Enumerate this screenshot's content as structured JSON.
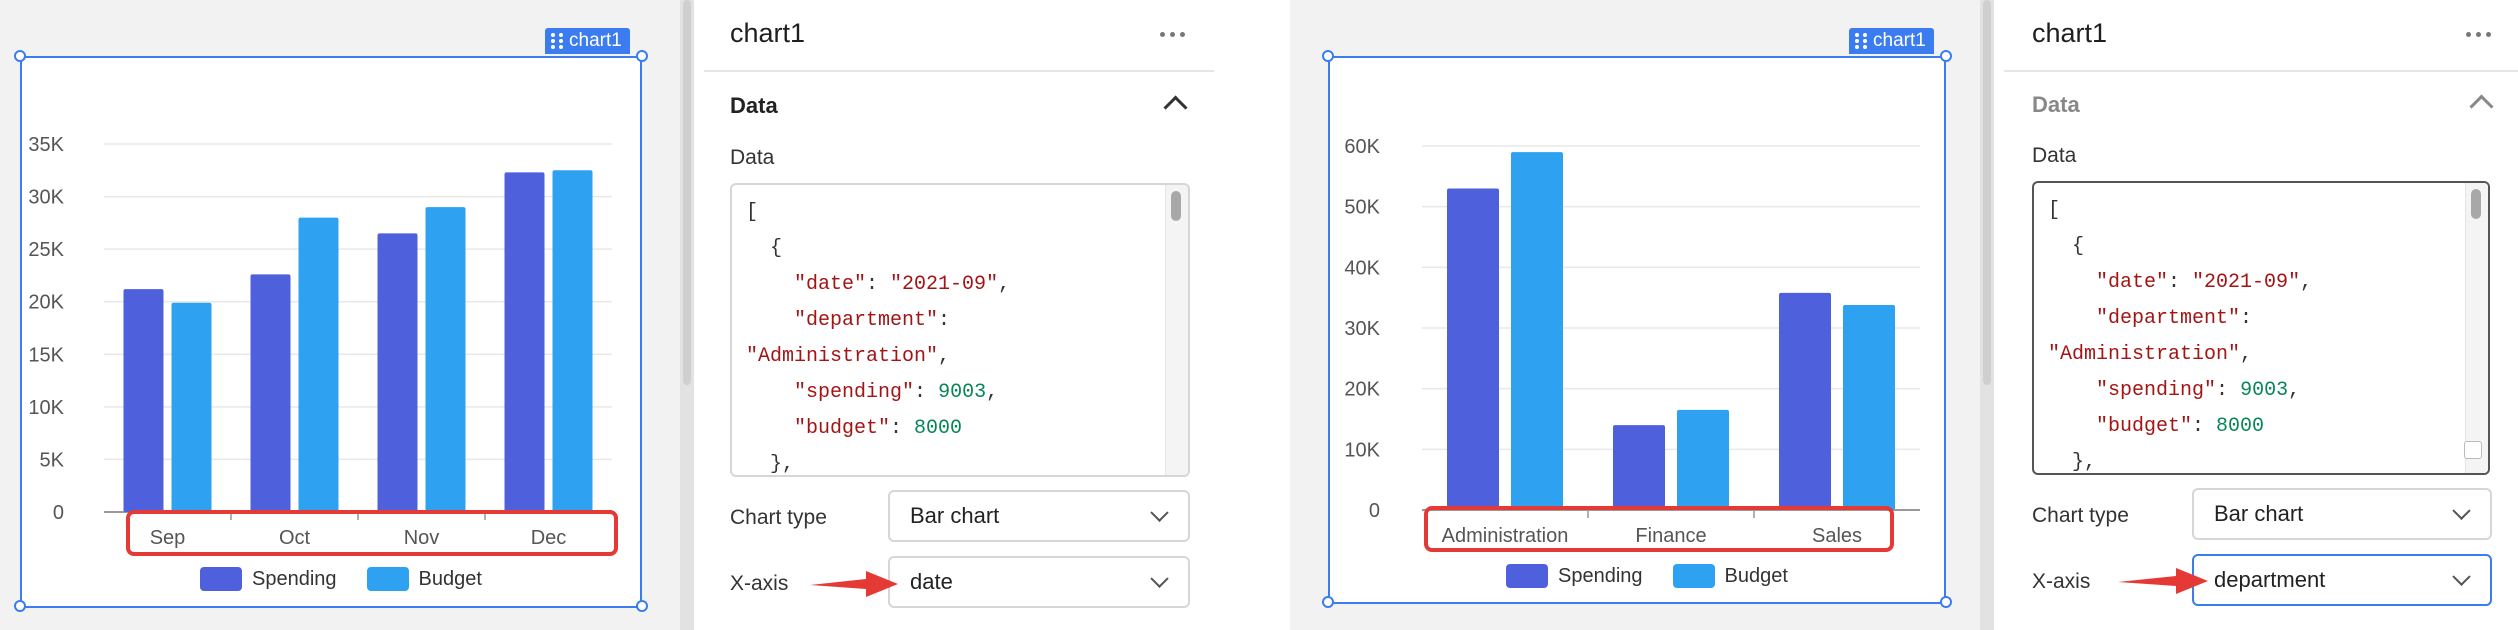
{
  "panels": [
    {
      "chart_tag": "chart1",
      "title": "chart1",
      "section": "Data",
      "data_label": "Data",
      "code": {
        "line1": "[",
        "line2": "  {",
        "date_key": "\"date\"",
        "date_val": "\"2021-09\"",
        "dept_key": "\"department\"",
        "dept_val": "\"Administration\"",
        "spend_key": "\"spending\"",
        "spend_val": "9003",
        "budget_key": "\"budget\"",
        "budget_val": "8000",
        "close": "  },"
      },
      "chart_type_label": "Chart type",
      "chart_type_value": "Bar chart",
      "x_axis_label": "X-axis",
      "x_axis_value": "date"
    },
    {
      "chart_tag": "chart1",
      "title": "chart1",
      "section": "Data",
      "data_label": "Data",
      "code": {
        "line1": "[",
        "line2": "  {",
        "date_key": "\"date\"",
        "date_val": "\"2021-09\"",
        "dept_key": "\"department\"",
        "dept_val": "\"Administration\"",
        "spend_key": "\"spending\"",
        "spend_val": "9003",
        "budget_key": "\"budget\"",
        "budget_val": "8000",
        "close": "  },"
      },
      "chart_type_label": "Chart type",
      "chart_type_value": "Bar chart",
      "x_axis_label": "X-axis",
      "x_axis_value": "department"
    }
  ],
  "colors": {
    "spending": "#4e60dc",
    "budget": "#2ea1f1",
    "accent": "#3b7cf0",
    "highlight": "#e53935"
  },
  "chart_data": [
    {
      "type": "bar",
      "categories": [
        "Sep",
        "Oct",
        "Nov",
        "Dec"
      ],
      "series": [
        {
          "name": "Spending",
          "values": [
            21200,
            22600,
            26500,
            32300
          ]
        },
        {
          "name": "Budget",
          "values": [
            19900,
            28000,
            29000,
            32500
          ]
        }
      ],
      "y_ticks": [
        "0",
        "5K",
        "10K",
        "15K",
        "20K",
        "25K",
        "30K",
        "35K"
      ],
      "ylim": [
        0,
        35000
      ],
      "grid": true,
      "legend": "bottom"
    },
    {
      "type": "bar",
      "categories": [
        "Administration",
        "Finance",
        "Sales"
      ],
      "series": [
        {
          "name": "Spending",
          "values": [
            53000,
            14000,
            35800
          ]
        },
        {
          "name": "Budget",
          "values": [
            59000,
            16500,
            33800
          ]
        }
      ],
      "y_ticks": [
        "0",
        "10K",
        "20K",
        "30K",
        "40K",
        "50K",
        "60K"
      ],
      "ylim": [
        0,
        60000
      ],
      "grid": true,
      "legend": "bottom"
    }
  ]
}
